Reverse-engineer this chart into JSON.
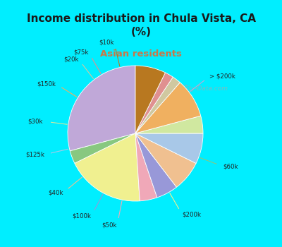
{
  "title": "Income distribution in Chula Vista, CA\n(%)",
  "subtitle": "Asian residents",
  "title_color": "#1a1a1a",
  "subtitle_color": "#c87848",
  "bg_top": "#00eeff",
  "bg_chart_top": "#e8f5f0",
  "bg_chart_bottom": "#c8e8d8",
  "labels": [
    "> $200k",
    "$60k",
    "$200k",
    "$50k",
    "$100k",
    "$40k",
    "$125k",
    "$30k",
    "$150k",
    "$20k",
    "$75k",
    "$10k"
  ],
  "values": [
    28,
    3,
    18,
    4,
    5,
    7,
    7,
    4,
    9,
    2,
    2,
    7
  ],
  "colors": [
    "#c0a8d8",
    "#88c880",
    "#f0f090",
    "#f0a8b8",
    "#9898d8",
    "#f0c090",
    "#a8c8e8",
    "#d0e8a0",
    "#f0b060",
    "#d0c8a0",
    "#e09090",
    "#b87820"
  ],
  "startangle": 90,
  "figsize": [
    4.0,
    3.5
  ],
  "dpi": 100,
  "watermark": "City-Data.com"
}
